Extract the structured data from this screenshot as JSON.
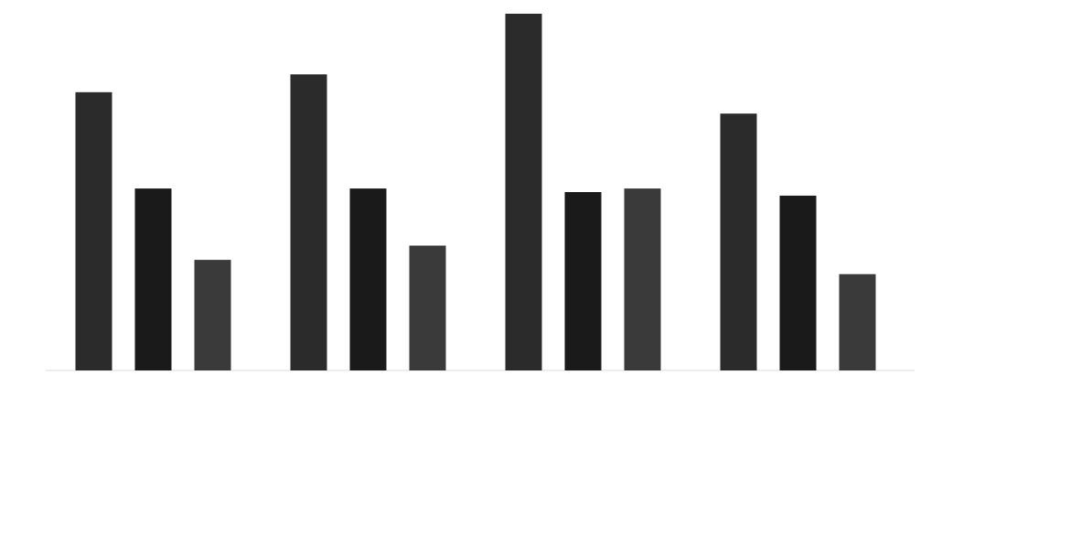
{
  "chart_data": {
    "type": "bar",
    "ylim": [
      0,
      100
    ],
    "series": [
      {
        "color": "#2b2b2b",
        "values": [
          78,
          83,
          100,
          72
        ]
      },
      {
        "color": "#1a1a1a",
        "values": [
          51,
          51,
          50,
          49
        ]
      },
      {
        "color": "#3a3a3a",
        "values": [
          31,
          35,
          51,
          27
        ]
      }
    ]
  }
}
